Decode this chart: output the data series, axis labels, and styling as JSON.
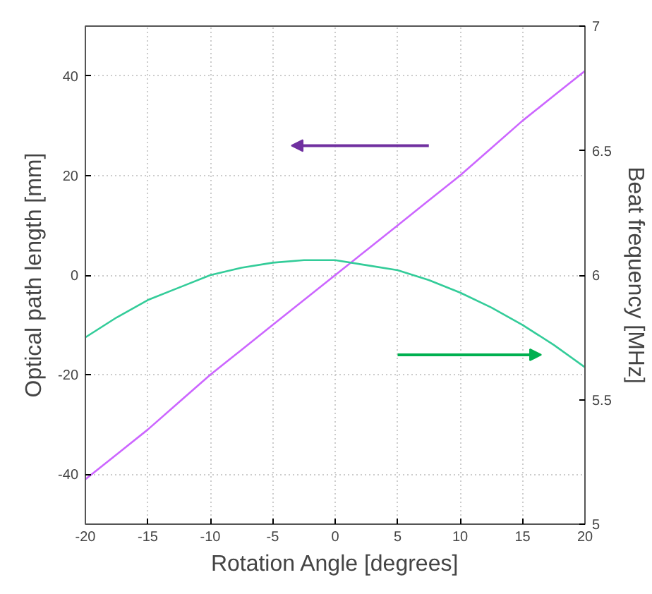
{
  "chart_data": {
    "type": "line",
    "xlabel": "Rotation Angle [degrees]",
    "ylabel": "Optical path length [mm]",
    "y2label": "Beat frequency [MHz]",
    "xlim": [
      -20,
      20
    ],
    "xticks": [
      -20,
      -15,
      -10,
      -5,
      0,
      5,
      10,
      15,
      20
    ],
    "ylim": [
      -50,
      50
    ],
    "yticks": [
      -40,
      -20,
      0,
      20,
      40
    ],
    "y2lim": [
      5,
      7
    ],
    "y2ticks": [
      5,
      5.5,
      6,
      6.5,
      7
    ],
    "grid": true,
    "line_style": "solid",
    "x": [
      -20,
      -17.5,
      -15,
      -12.5,
      -10,
      -7.5,
      -5,
      -2.5,
      0,
      2.5,
      5,
      7.5,
      10,
      12.5,
      15,
      17.5,
      20
    ],
    "series": [
      {
        "color": "#cc66ff",
        "values": [
          -41,
          -36,
          -31,
          -25.5,
          -20,
          -15,
          -10,
          -5,
          0,
          5,
          10,
          15,
          20,
          25.5,
          31,
          36,
          41
        ]
      },
      {
        "color": "#33cc99",
        "axis": "y2",
        "values": [
          5.75,
          5.83,
          5.9,
          5.95,
          6.0,
          6.03,
          6.05,
          6.06,
          6.06,
          6.04,
          6.02,
          5.98,
          5.93,
          5.87,
          5.8,
          5.72,
          5.63
        ]
      }
    ]
  }
}
